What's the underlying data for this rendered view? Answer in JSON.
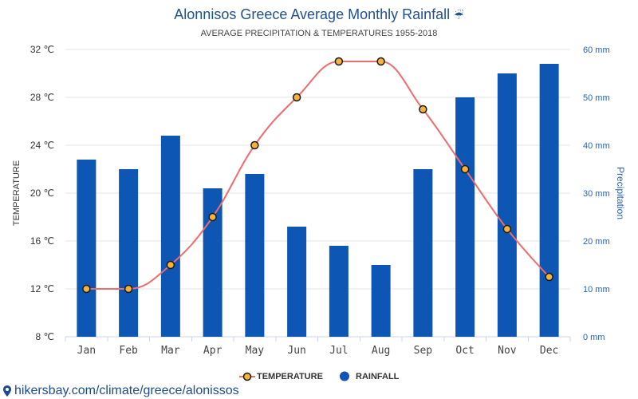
{
  "header": {
    "icon": "umbrella-rain-icon",
    "icon_glyph": "☔"
  },
  "chart_data": {
    "type": "bar",
    "title": "Alonnisos Greece Average Monthly Rainfall",
    "subtitle": "AVERAGE PRECIPITATION & TEMPERATURES 1955-2018",
    "categories": [
      "Jan",
      "Feb",
      "Mar",
      "Apr",
      "May",
      "Jun",
      "Jul",
      "Aug",
      "Sep",
      "Oct",
      "Nov",
      "Dec"
    ],
    "series": [
      {
        "name": "TEMPERATURE",
        "type": "line",
        "axis": "left",
        "values": [
          12,
          12,
          14,
          18,
          24,
          28,
          31,
          31,
          27,
          22,
          17,
          13
        ],
        "color": "#f06b6b",
        "marker_color": "#f7b23b",
        "marker_border": "#1a1a1a"
      },
      {
        "name": "RAINFALL",
        "type": "bar",
        "axis": "right",
        "values": [
          37,
          35,
          42,
          31,
          34,
          23,
          19,
          15,
          35,
          50,
          55,
          57
        ],
        "color": "#0d56b3"
      }
    ],
    "ylabel": "TEMPERATURE",
    "ylabel_right": "Precipitation",
    "ylim": [
      8,
      32
    ],
    "ylim_right": [
      0,
      60
    ],
    "yticks": [
      8,
      12,
      16,
      20,
      24,
      28,
      32
    ],
    "ytick_labels": [
      "8 ℃",
      "12 ℃",
      "16 ℃",
      "20 ℃",
      "24 ℃",
      "28 ℃",
      "32 ℃"
    ],
    "yticks_right": [
      0,
      10,
      20,
      30,
      40,
      50,
      60
    ],
    "ytick_labels_right": [
      "0 mm",
      "10 mm",
      "20 mm",
      "30 mm",
      "40 mm",
      "50 mm",
      "60 mm"
    ],
    "grid": true,
    "legend": "bottom-center"
  },
  "footer": {
    "icon": "map-pin-icon",
    "link_text": "hikersbay.com/climate/greece/alonissos"
  },
  "colors": {
    "title": "#23508e",
    "right_axis": "#2a62b0",
    "left_axis": "#333333",
    "link": "#1d4c8c"
  }
}
